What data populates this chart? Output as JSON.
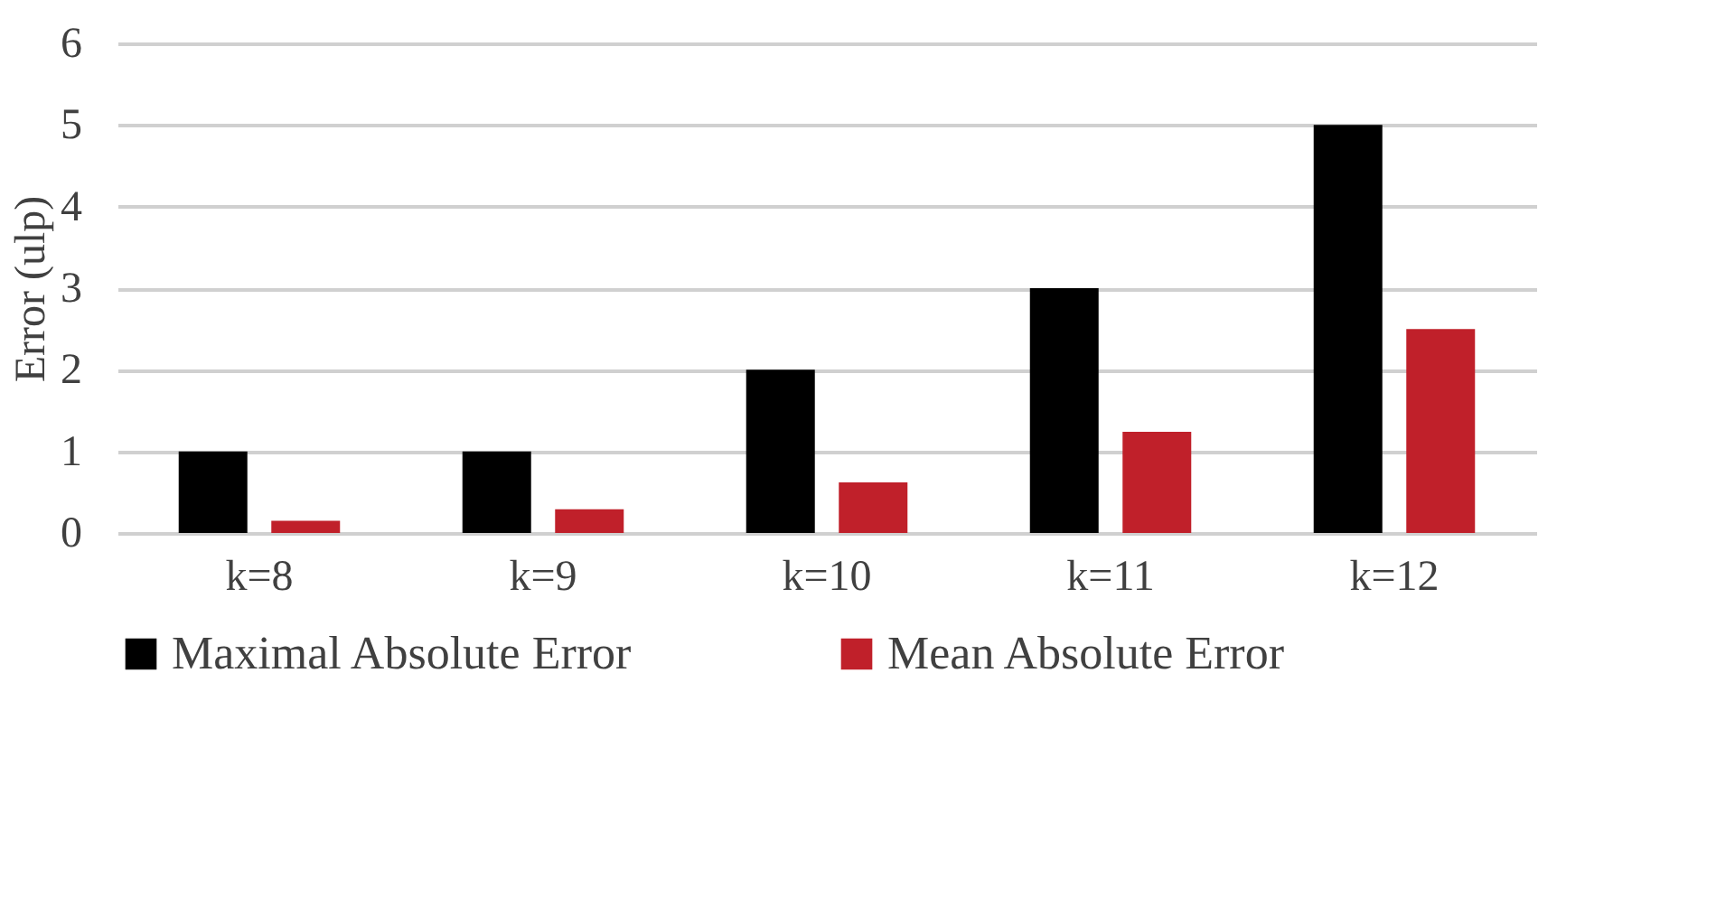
{
  "chart_data": {
    "type": "bar",
    "ylabel": "Error (ulp)",
    "categories": [
      "k=8",
      "k=9",
      "k=10",
      "k=11",
      "k=12"
    ],
    "series": [
      {
        "name": "Maximal Absolute Error",
        "color": "#000000",
        "values": [
          1,
          1,
          2,
          3,
          5
        ]
      },
      {
        "name": "Mean Absolute Error",
        "color": "#c0202a",
        "values": [
          0.15,
          0.29,
          0.62,
          1.24,
          2.5
        ]
      }
    ],
    "ylim": [
      0,
      6
    ],
    "yticks": [
      0,
      1,
      2,
      3,
      4,
      5,
      6
    ],
    "grid": "y",
    "legend": "bottom"
  }
}
